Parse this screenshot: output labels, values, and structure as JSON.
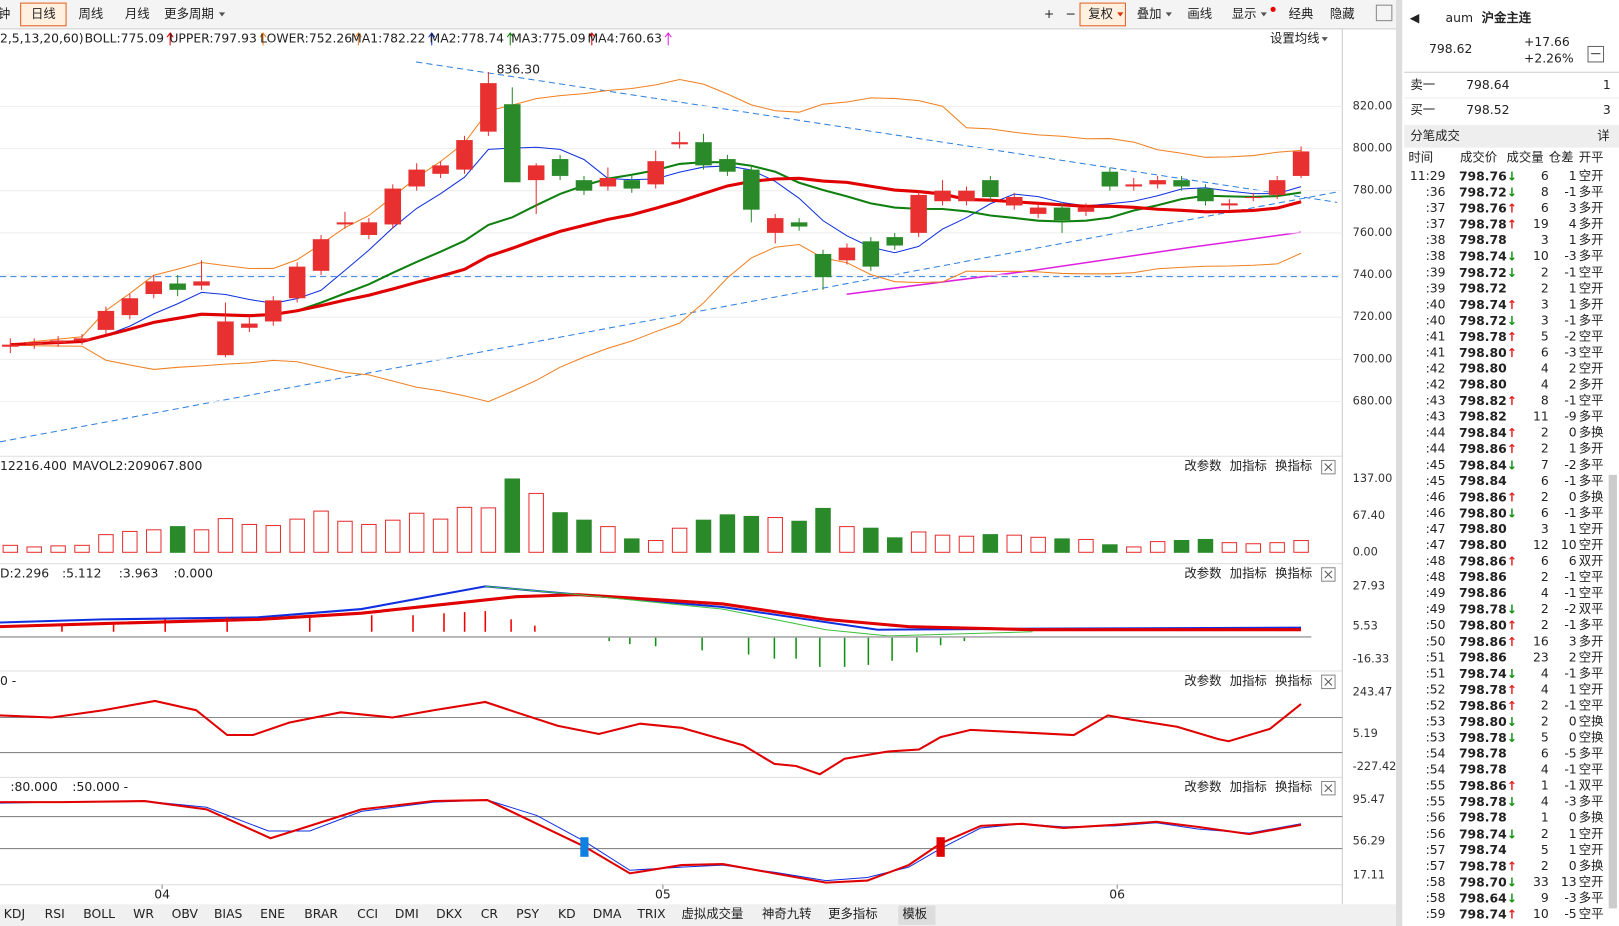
{
  "toolbar": {
    "tabs": [
      "钟",
      "日线",
      "周线",
      "月线",
      "更多周期"
    ],
    "right": [
      "复权",
      "叠加",
      "画线",
      "显示",
      "经典",
      "隐藏"
    ]
  },
  "legend": {
    "params": "2,5,13,20,60)",
    "items": [
      {
        "text": "BOLL:775.09",
        "color": "#e00000"
      },
      {
        "text": "UPPER:797.93",
        "color": "#f08020"
      },
      {
        "text": "LOWER:752.26",
        "color": "#f08020"
      },
      {
        "text": "MA1:782.22",
        "color": "#1030e0"
      },
      {
        "text": "MA2:778.74",
        "color": "#108010"
      },
      {
        "text": "MA3:775.09",
        "color": "#e00000"
      },
      {
        "text": "MA4:760.63",
        "color": "#e020e0"
      }
    ],
    "setting": "设置均线"
  },
  "price_axis": {
    "ticks": [
      {
        "value": 820,
        "label": "820.00"
      },
      {
        "value": 800,
        "label": "800.00"
      },
      {
        "value": 780,
        "label": "780.00"
      },
      {
        "value": 760,
        "label": "760.00"
      },
      {
        "value": 740,
        "label": "740.00"
      },
      {
        "value": 720,
        "label": "720.00"
      },
      {
        "value": 700,
        "label": "700.00"
      },
      {
        "value": 680,
        "label": "680.00"
      }
    ],
    "high_label": "836.30"
  },
  "candles": [
    [
      706,
      707,
      710,
      703
    ],
    [
      707,
      708,
      710,
      705
    ],
    [
      708,
      709,
      711,
      706
    ],
    [
      709,
      710,
      712,
      707
    ],
    [
      714,
      723,
      725,
      712
    ],
    [
      721,
      729,
      731,
      719
    ],
    [
      731,
      737,
      740,
      729
    ],
    [
      736,
      733,
      740,
      730
    ],
    [
      735,
      737,
      747,
      733
    ],
    [
      702,
      718,
      727,
      701
    ],
    [
      715,
      717,
      720,
      713
    ],
    [
      718,
      728,
      730,
      716
    ],
    [
      729,
      744,
      746,
      727
    ],
    [
      742,
      757,
      759,
      740
    ],
    [
      764,
      765,
      770,
      762
    ],
    [
      759,
      765,
      767,
      757
    ],
    [
      764,
      781,
      783,
      762
    ],
    [
      782,
      790,
      793,
      780
    ],
    [
      788,
      792,
      794,
      786
    ],
    [
      790,
      804,
      806,
      788
    ],
    [
      808,
      831,
      836.3,
      806
    ],
    [
      821,
      784,
      829,
      784
    ],
    [
      785,
      792,
      793,
      769
    ],
    [
      795,
      787,
      797,
      785
    ],
    [
      785,
      780,
      787,
      778
    ],
    [
      782,
      786,
      791,
      780
    ],
    [
      785,
      781,
      787,
      779
    ],
    [
      783,
      794,
      799,
      781
    ],
    [
      802,
      803,
      808,
      800
    ],
    [
      803,
      792,
      807,
      790
    ],
    [
      795,
      789,
      797,
      787
    ],
    [
      790,
      771,
      792,
      765
    ],
    [
      760,
      767,
      769,
      755
    ],
    [
      765,
      763,
      767,
      761
    ],
    [
      750,
      739,
      752,
      733
    ],
    [
      747,
      753,
      755,
      745
    ],
    [
      756,
      744,
      758,
      742
    ],
    [
      758,
      754,
      760,
      752
    ],
    [
      760,
      778,
      780,
      758
    ],
    [
      775,
      780,
      785,
      773
    ],
    [
      775,
      780,
      782,
      773
    ],
    [
      785,
      777,
      787,
      775
    ],
    [
      773,
      777,
      779,
      771
    ],
    [
      769,
      772,
      774,
      767
    ],
    [
      772,
      766,
      774,
      760
    ],
    [
      770,
      772,
      774,
      768
    ],
    [
      789,
      782,
      791,
      780
    ],
    [
      782,
      783,
      786,
      780
    ],
    [
      783,
      785,
      787,
      781
    ],
    [
      785,
      782,
      787,
      780
    ],
    [
      781,
      775,
      783,
      773
    ],
    [
      773,
      774,
      776,
      771
    ],
    [
      777,
      777,
      779,
      775
    ],
    [
      778,
      785,
      787,
      776
    ],
    [
      787,
      798.62,
      801,
      786
    ]
  ],
  "volume": {
    "legend": [
      "12216.400",
      "MAVOL2:209067.800"
    ],
    "ticks": [
      {
        "value": 137,
        "label": "137.00"
      },
      {
        "value": 67.4,
        "label": "67.40"
      },
      {
        "value": 0,
        "label": "0.00"
      }
    ],
    "values": [
      13,
      10,
      12,
      13,
      33,
      39,
      42,
      48,
      42,
      63,
      52,
      50,
      62,
      77,
      58,
      52,
      60,
      73,
      62,
      84,
      83,
      137,
      110,
      74,
      60,
      48,
      25,
      22,
      45,
      60,
      70,
      67,
      65,
      58,
      82,
      48,
      45,
      27,
      38,
      32,
      30,
      33,
      32,
      28,
      25,
      24,
      14,
      10,
      20,
      22,
      24,
      18,
      16,
      18,
      22
    ]
  },
  "panel_buttons": [
    "改参数",
    "加指标",
    "换指标"
  ],
  "macd": {
    "legend": [
      "D:2.296",
      ":5.112",
      ":3.963",
      ":0.000"
    ],
    "ticks": [
      "27.93",
      "5.53",
      "-16.33"
    ]
  },
  "cci": {
    "legend": [
      "0 -"
    ],
    "ticks": [
      "243.47",
      "5.19",
      "-227.42"
    ]
  },
  "kdj": {
    "legend": [
      ":80.000",
      ":50.000 -"
    ],
    "ticks": [
      "95.47",
      "56.29",
      "17.11"
    ]
  },
  "months": [
    "04",
    "05",
    "06"
  ],
  "bottom_tabs": [
    "KDJ",
    "RSI",
    "BOLL",
    "WR",
    "OBV",
    "BIAS",
    "ENE",
    "BRAR",
    "CCI",
    "DMI",
    "DKX",
    "CR",
    "PSY",
    "KD",
    "DMA",
    "TRIX",
    "虚拟成交量",
    "神奇九转",
    "更多指标",
    "模板"
  ],
  "quote": {
    "code": "aum",
    "name": "沪金主连",
    "price": "798.62",
    "change": "+17.66",
    "pct": "+2.26%",
    "sell": [
      "卖一",
      "798.64",
      "1"
    ],
    "buy": [
      "买一",
      "798.52",
      "3"
    ]
  },
  "trades": {
    "title": "分笔成交",
    "detail": "详",
    "header": [
      "时间",
      "成交价",
      "成交量",
      "仓差",
      "开平"
    ],
    "rows": [
      [
        "11:29",
        "798.76↓",
        6,
        1,
        "空开"
      ],
      [
        ":36",
        "798.72↓",
        8,
        -1,
        "多平"
      ],
      [
        ":37",
        "798.76↑",
        6,
        3,
        "多开"
      ],
      [
        ":37",
        "798.78↑",
        19,
        4,
        "多开"
      ],
      [
        ":38",
        "798.78",
        3,
        1,
        "多开"
      ],
      [
        ":38",
        "798.74↓",
        10,
        -3,
        "多平"
      ],
      [
        ":39",
        "798.72↓",
        2,
        -1,
        "空平"
      ],
      [
        ":39",
        "798.72",
        2,
        1,
        "空开"
      ],
      [
        ":40",
        "798.74↑",
        3,
        1,
        "多开"
      ],
      [
        ":40",
        "798.72↓",
        3,
        -1,
        "多平"
      ],
      [
        ":41",
        "798.78↑",
        5,
        -2,
        "空平"
      ],
      [
        ":41",
        "798.80↑",
        6,
        -3,
        "空平"
      ],
      [
        ":42",
        "798.80",
        4,
        2,
        "空开"
      ],
      [
        ":42",
        "798.80",
        4,
        2,
        "多开"
      ],
      [
        ":43",
        "798.82↑",
        8,
        -1,
        "空平"
      ],
      [
        ":43",
        "798.82",
        11,
        -9,
        "多平"
      ],
      [
        ":44",
        "798.84↑",
        2,
        0,
        "多换"
      ],
      [
        ":44",
        "798.86↑",
        2,
        1,
        "多开"
      ],
      [
        ":45",
        "798.84↓",
        7,
        -2,
        "多平"
      ],
      [
        ":45",
        "798.84",
        6,
        -1,
        "多平"
      ],
      [
        ":46",
        "798.86↑",
        2,
        0,
        "多换"
      ],
      [
        ":46",
        "798.80↓",
        6,
        -1,
        "多平"
      ],
      [
        ":47",
        "798.80",
        3,
        1,
        "空开"
      ],
      [
        ":47",
        "798.80",
        12,
        10,
        "空开"
      ],
      [
        ":48",
        "798.86↑",
        6,
        6,
        "双开"
      ],
      [
        ":48",
        "798.86",
        2,
        -1,
        "空平"
      ],
      [
        ":49",
        "798.86",
        4,
        -1,
        "空平"
      ],
      [
        ":49",
        "798.78↓",
        2,
        -2,
        "双平"
      ],
      [
        ":50",
        "798.80↑",
        2,
        -1,
        "多平"
      ],
      [
        ":50",
        "798.86↑",
        16,
        3,
        "多开"
      ],
      [
        ":51",
        "798.86",
        23,
        2,
        "空开"
      ],
      [
        ":51",
        "798.74↓",
        4,
        -1,
        "多平"
      ],
      [
        ":52",
        "798.78↑",
        4,
        1,
        "空开"
      ],
      [
        ":52",
        "798.86↑",
        2,
        -1,
        "空平"
      ],
      [
        ":53",
        "798.80↓",
        2,
        0,
        "空换"
      ],
      [
        ":53",
        "798.78↓",
        5,
        0,
        "空换"
      ],
      [
        ":54",
        "798.78",
        6,
        -5,
        "多平"
      ],
      [
        ":54",
        "798.78",
        4,
        -1,
        "空平"
      ],
      [
        ":55",
        "798.86↑",
        1,
        -1,
        "双平"
      ],
      [
        ":55",
        "798.78↓",
        4,
        -3,
        "多平"
      ],
      [
        ":56",
        "798.78",
        1,
        0,
        "多换"
      ],
      [
        ":56",
        "798.74↓",
        2,
        1,
        "空开"
      ],
      [
        ":57",
        "798.74",
        5,
        1,
        "空开"
      ],
      [
        ":57",
        "798.78↑",
        2,
        0,
        "多换"
      ],
      [
        ":58",
        "798.70↓",
        33,
        13,
        "空开"
      ],
      [
        ":58",
        "798.64↓",
        9,
        -3,
        "多平"
      ],
      [
        ":59",
        "798.74↑",
        10,
        -5,
        "空平"
      ]
    ]
  }
}
